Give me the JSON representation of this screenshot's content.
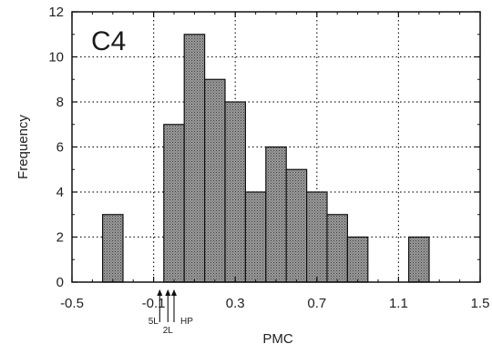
{
  "chart_data": {
    "type": "bar",
    "panel_label": "C4",
    "xlabel": "PMC",
    "ylabel": "Frequency",
    "xlim": [
      -0.5,
      1.5
    ],
    "ylim": [
      0,
      12
    ],
    "x_ticks": [
      -0.5,
      -0.1,
      0.3,
      0.7,
      1.1,
      1.5
    ],
    "x_tick_labels": [
      "-0.5",
      "-0.1",
      "0.3",
      "0.7",
      "1.1",
      "1.5"
    ],
    "y_ticks": [
      0,
      2,
      4,
      6,
      8,
      10,
      12
    ],
    "y_tick_labels": [
      "0",
      "2",
      "4",
      "6",
      "8",
      "10",
      "12"
    ],
    "grid": true,
    "bin_width": 0.1,
    "bins": [
      {
        "start": -0.35,
        "end": -0.25,
        "value": 3
      },
      {
        "start": -0.05,
        "end": 0.05,
        "value": 7
      },
      {
        "start": 0.05,
        "end": 0.15,
        "value": 11
      },
      {
        "start": 0.15,
        "end": 0.25,
        "value": 9
      },
      {
        "start": 0.25,
        "end": 0.35,
        "value": 8
      },
      {
        "start": 0.35,
        "end": 0.45,
        "value": 4
      },
      {
        "start": 0.45,
        "end": 0.55,
        "value": 6
      },
      {
        "start": 0.55,
        "end": 0.65,
        "value": 5
      },
      {
        "start": 0.65,
        "end": 0.75,
        "value": 4
      },
      {
        "start": 0.75,
        "end": 0.85,
        "value": 3
      },
      {
        "start": 0.85,
        "end": 0.95,
        "value": 2
      },
      {
        "start": 1.15,
        "end": 1.25,
        "value": 2
      }
    ],
    "markers": [
      {
        "label": "5L",
        "x": -0.07
      },
      {
        "label": "2L",
        "x": -0.03
      },
      {
        "label": "HP",
        "x": 0.0
      }
    ],
    "bar_fill": "#8c8c8c",
    "bar_stroke": "#111111"
  }
}
